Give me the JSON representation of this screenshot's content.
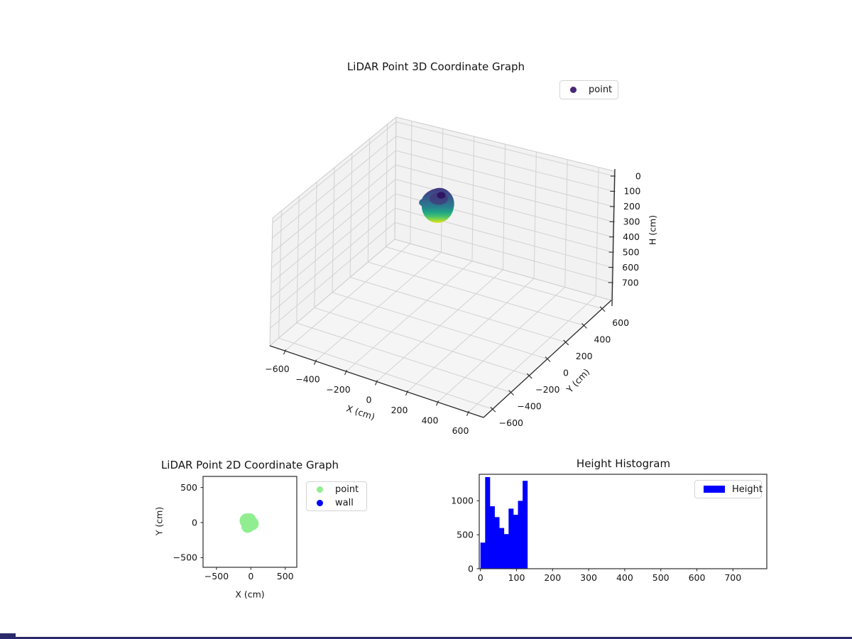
{
  "ui": {
    "background": "#ffffff",
    "bottom_bar_color": "#2a2a6a",
    "text_color": "#141414",
    "grid_color": "#d2d2d2",
    "pane_color": "#f2f2f2"
  },
  "chart_data": [
    {
      "type": "scatter3d",
      "title": "LiDAR Point 3D Coordinate Graph",
      "xlabel": "X (cm)",
      "ylabel": "Y (cm)",
      "zlabel": "H (cm)",
      "xticks": [
        -600,
        -400,
        -200,
        0,
        200,
        400,
        600
      ],
      "yticks": [
        -600,
        -400,
        -200,
        0,
        200,
        400,
        600
      ],
      "zticks": [
        0,
        100,
        200,
        300,
        400,
        500,
        600,
        700
      ],
      "xlim": [
        -700,
        700
      ],
      "ylim": [
        -700,
        700
      ],
      "zlim": [
        0,
        780
      ],
      "z_axis_inverted": true,
      "grid": true,
      "legend": [
        {
          "label": "point",
          "color": "#482878",
          "marker": "circle"
        }
      ],
      "points_summary": {
        "description": "dense point-cloud blob colored by height (viridis: purple = low H at top, yellow = high H at bottom)",
        "center_x_cm": -25,
        "center_y_cm": -5,
        "height_min_cm": 0,
        "height_max_cm": 135,
        "cluster_radius_cm": 120
      },
      "colormap": "viridis"
    },
    {
      "type": "scatter",
      "title": "LiDAR Point 2D Coordinate Graph",
      "xlabel": "X (cm)",
      "ylabel": "Y (cm)",
      "xticks": [
        -500,
        0,
        500
      ],
      "yticks": [
        500,
        0,
        -500
      ],
      "xlim": [
        -695,
        670
      ],
      "ylim": [
        -645,
        670
      ],
      "grid": false,
      "legend": [
        {
          "label": "point",
          "color": "#90EE90",
          "marker": "circle"
        },
        {
          "label": "wall",
          "color": "#0000FF",
          "marker": "circle"
        }
      ],
      "series": [
        {
          "name": "point",
          "color": "#90EE90",
          "cluster": {
            "center_x_cm": -25,
            "center_y_cm": -5,
            "radius_cm": 125
          }
        },
        {
          "name": "wall",
          "color": "#0000FF",
          "cluster": null
        }
      ]
    },
    {
      "type": "histogram",
      "title": "Height Histogram",
      "xlabel": "",
      "ylabel": "",
      "bar_color": "#0000FF",
      "bin_start": 0,
      "bin_width": 13,
      "values": [
        385,
        1350,
        920,
        760,
        600,
        510,
        885,
        795,
        1000,
        1295
      ],
      "xticks": [
        0,
        100,
        200,
        300,
        400,
        500,
        600,
        700
      ],
      "yticks": [
        0,
        500,
        1000
      ],
      "xlim": [
        -5,
        795
      ],
      "ylim": [
        0,
        1400
      ],
      "legend": [
        {
          "label": "Height",
          "color": "#0000FF",
          "marker": "square"
        }
      ]
    }
  ]
}
